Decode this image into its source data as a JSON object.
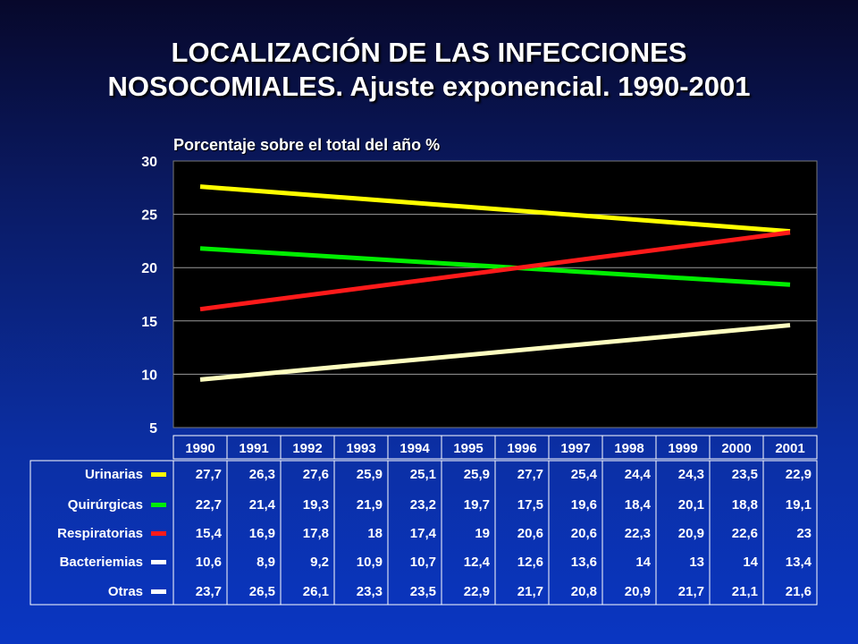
{
  "slide": {
    "title_line1": "LOCALIZACIÓN DE LAS INFECCIONES",
    "title_line2": "NOSOCOMIALES. Ajuste exponencial. 1990-2001"
  },
  "chart_data": {
    "type": "line",
    "ylabel": "Porcentaje sobre el total del año %",
    "ylim": [
      5,
      30
    ],
    "yticks": [
      "30",
      "25",
      "20",
      "15",
      "10",
      "5"
    ],
    "grid": true,
    "x": [
      "1990",
      "1991",
      "1992",
      "1993",
      "1994",
      "1995",
      "1996",
      "1997",
      "1998",
      "1999",
      "2000",
      "2001"
    ],
    "trend_lines": [
      {
        "color": "#ffff00",
        "start": 27.6,
        "end": 23.4
      },
      {
        "color": "#00ee00",
        "start": 21.8,
        "end": 18.4
      },
      {
        "color": "#ff1a1a",
        "start": 16.1,
        "end": 23.3
      },
      {
        "color": "#ffffc0",
        "start": 9.5,
        "end": 14.6
      }
    ],
    "table": [
      {
        "name": "Urinarias",
        "color": "#ffff00",
        "values": [
          "27,7",
          "26,3",
          "27,6",
          "25,9",
          "25,1",
          "25,9",
          "27,7",
          "25,4",
          "24,4",
          "24,3",
          "23,5",
          "22,9"
        ]
      },
      {
        "name": "Quirúrgicas",
        "color": "#00ee00",
        "values": [
          "22,7",
          "21,4",
          "19,3",
          "21,9",
          "23,2",
          "19,7",
          "17,5",
          "19,6",
          "18,4",
          "20,1",
          "18,8",
          "19,1"
        ]
      },
      {
        "name": "Respiratorias",
        "color": "#ff1a1a",
        "values": [
          "15,4",
          "16,9",
          "17,8",
          "18",
          "17,4",
          "19",
          "20,6",
          "20,6",
          "22,3",
          "20,9",
          "22,6",
          "23"
        ]
      },
      {
        "name": "Bacteriemias",
        "color": "#ffffff",
        "values": [
          "10,6",
          "8,9",
          "9,2",
          "10,9",
          "10,7",
          "12,4",
          "12,6",
          "13,6",
          "14",
          "13",
          "14",
          "13,4"
        ]
      },
      {
        "name": "Otras",
        "color": "#ffffff",
        "values": [
          "23,7",
          "26,5",
          "26,1",
          "23,3",
          "23,5",
          "22,9",
          "21,7",
          "20,8",
          "20,9",
          "21,7",
          "21,1",
          "21,6"
        ]
      }
    ]
  }
}
